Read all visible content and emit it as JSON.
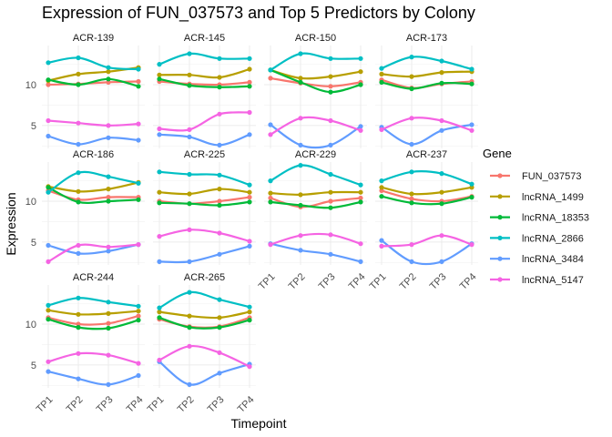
{
  "chart_data": {
    "type": "line",
    "title": "Expression of FUN_037573 and Top 5 Predictors by Colony",
    "xlabel": "Timepoint",
    "ylabel": "Expression",
    "x": [
      "TP1",
      "TP2",
      "TP3",
      "TP4"
    ],
    "y_ticks": [
      5,
      10
    ],
    "ylim": [
      2.2,
      14.8
    ],
    "legend_title": "Gene",
    "legend_position": "right",
    "grid": true,
    "series_names": [
      "FUN_037573",
      "lncRNA_1499",
      "lncRNA_18353",
      "lncRNA_2866",
      "lncRNA_3484",
      "lncRNA_5147"
    ],
    "series_colors": [
      "#F8766D",
      "#B79F00",
      "#00BA38",
      "#00BFC4",
      "#619CFF",
      "#F564E3"
    ],
    "panels": [
      {
        "name": "ACR-139",
        "values": [
          [
            10.0,
            10.1,
            10.3,
            10.4
          ],
          [
            10.5,
            11.3,
            11.6,
            12.1
          ],
          [
            10.6,
            10.0,
            10.7,
            9.8
          ],
          [
            12.7,
            13.3,
            12.1,
            11.9
          ],
          [
            3.7,
            2.7,
            3.5,
            3.2
          ],
          [
            5.6,
            5.3,
            5.0,
            5.2
          ]
        ]
      },
      {
        "name": "ACR-145",
        "values": [
          [
            10.4,
            10.1,
            10.0,
            10.3
          ],
          [
            11.2,
            11.2,
            10.9,
            11.9
          ],
          [
            10.7,
            9.9,
            9.7,
            9.8
          ],
          [
            12.5,
            13.8,
            13.2,
            13.2
          ],
          [
            3.9,
            3.6,
            2.6,
            3.9
          ],
          [
            4.6,
            4.5,
            6.4,
            6.6
          ]
        ]
      },
      {
        "name": "ACR-150",
        "values": [
          [
            10.8,
            10.2,
            9.8,
            10.3
          ],
          [
            11.8,
            10.8,
            11.0,
            11.6
          ],
          [
            11.8,
            10.3,
            9.1,
            10.0
          ],
          [
            11.8,
            13.8,
            13.2,
            13.2
          ],
          [
            5.1,
            2.6,
            2.6,
            4.9
          ],
          [
            3.9,
            5.9,
            5.6,
            4.4
          ]
        ]
      },
      {
        "name": "ACR-173",
        "values": [
          [
            10.6,
            9.6,
            10.1,
            10.4
          ],
          [
            11.3,
            11.0,
            11.5,
            11.6
          ],
          [
            10.3,
            9.5,
            10.2,
            10.1
          ],
          [
            12.0,
            13.4,
            12.9,
            11.9
          ],
          [
            4.8,
            2.7,
            4.4,
            5.1
          ],
          [
            4.5,
            5.9,
            5.6,
            4.4
          ]
        ]
      },
      {
        "name": "ACR-186",
        "values": [
          [
            11.3,
            10.2,
            10.5,
            10.5
          ],
          [
            11.8,
            11.2,
            11.5,
            12.3
          ],
          [
            11.7,
            9.9,
            10.0,
            10.2
          ],
          [
            11.1,
            13.5,
            13.0,
            12.2
          ],
          [
            4.6,
            3.6,
            3.9,
            4.7
          ],
          [
            2.6,
            4.6,
            4.4,
            4.7
          ]
        ]
      },
      {
        "name": "ACR-225",
        "values": [
          [
            10.0,
            9.7,
            10.0,
            10.5
          ],
          [
            11.1,
            10.9,
            11.5,
            11.1
          ],
          [
            9.8,
            9.7,
            9.5,
            9.9
          ],
          [
            13.6,
            13.3,
            13.2,
            12.0
          ],
          [
            2.6,
            2.6,
            3.5,
            4.5
          ],
          [
            5.7,
            6.5,
            6.1,
            5.1
          ]
        ]
      },
      {
        "name": "ACR-229",
        "values": [
          [
            10.4,
            9.3,
            10.0,
            10.4
          ],
          [
            11.0,
            10.8,
            11.1,
            11.1
          ],
          [
            9.9,
            9.5,
            9.2,
            9.9
          ],
          [
            12.5,
            14.4,
            13.3,
            12.0
          ],
          [
            4.8,
            4.0,
            3.5,
            2.6
          ],
          [
            4.7,
            5.8,
            5.9,
            4.8
          ]
        ]
      },
      {
        "name": "ACR-237",
        "values": [
          [
            11.3,
            10.3,
            10.0,
            10.6
          ],
          [
            11.7,
            10.9,
            11.1,
            11.7
          ],
          [
            10.6,
            9.8,
            9.7,
            10.5
          ],
          [
            12.5,
            13.6,
            13.4,
            12.1
          ],
          [
            5.2,
            2.6,
            2.6,
            4.8
          ],
          [
            4.5,
            4.7,
            5.8,
            4.7
          ]
        ]
      },
      {
        "name": "ACR-244",
        "values": [
          [
            10.8,
            10.0,
            10.1,
            11.0
          ],
          [
            11.7,
            11.2,
            11.3,
            11.6
          ],
          [
            10.6,
            9.6,
            9.5,
            10.5
          ],
          [
            12.3,
            13.2,
            12.7,
            12.2
          ],
          [
            4.2,
            3.3,
            2.6,
            3.7
          ],
          [
            5.4,
            6.4,
            6.2,
            5.2
          ]
        ]
      },
      {
        "name": "ACR-265",
        "values": [
          [
            10.6,
            9.7,
            9.7,
            10.8
          ],
          [
            11.5,
            11.0,
            10.8,
            11.5
          ],
          [
            10.8,
            9.6,
            9.6,
            10.5
          ],
          [
            12.0,
            13.9,
            13.0,
            12.1
          ],
          [
            5.4,
            2.6,
            4.0,
            5.1
          ],
          [
            5.6,
            7.3,
            6.5,
            4.8
          ]
        ]
      }
    ]
  }
}
